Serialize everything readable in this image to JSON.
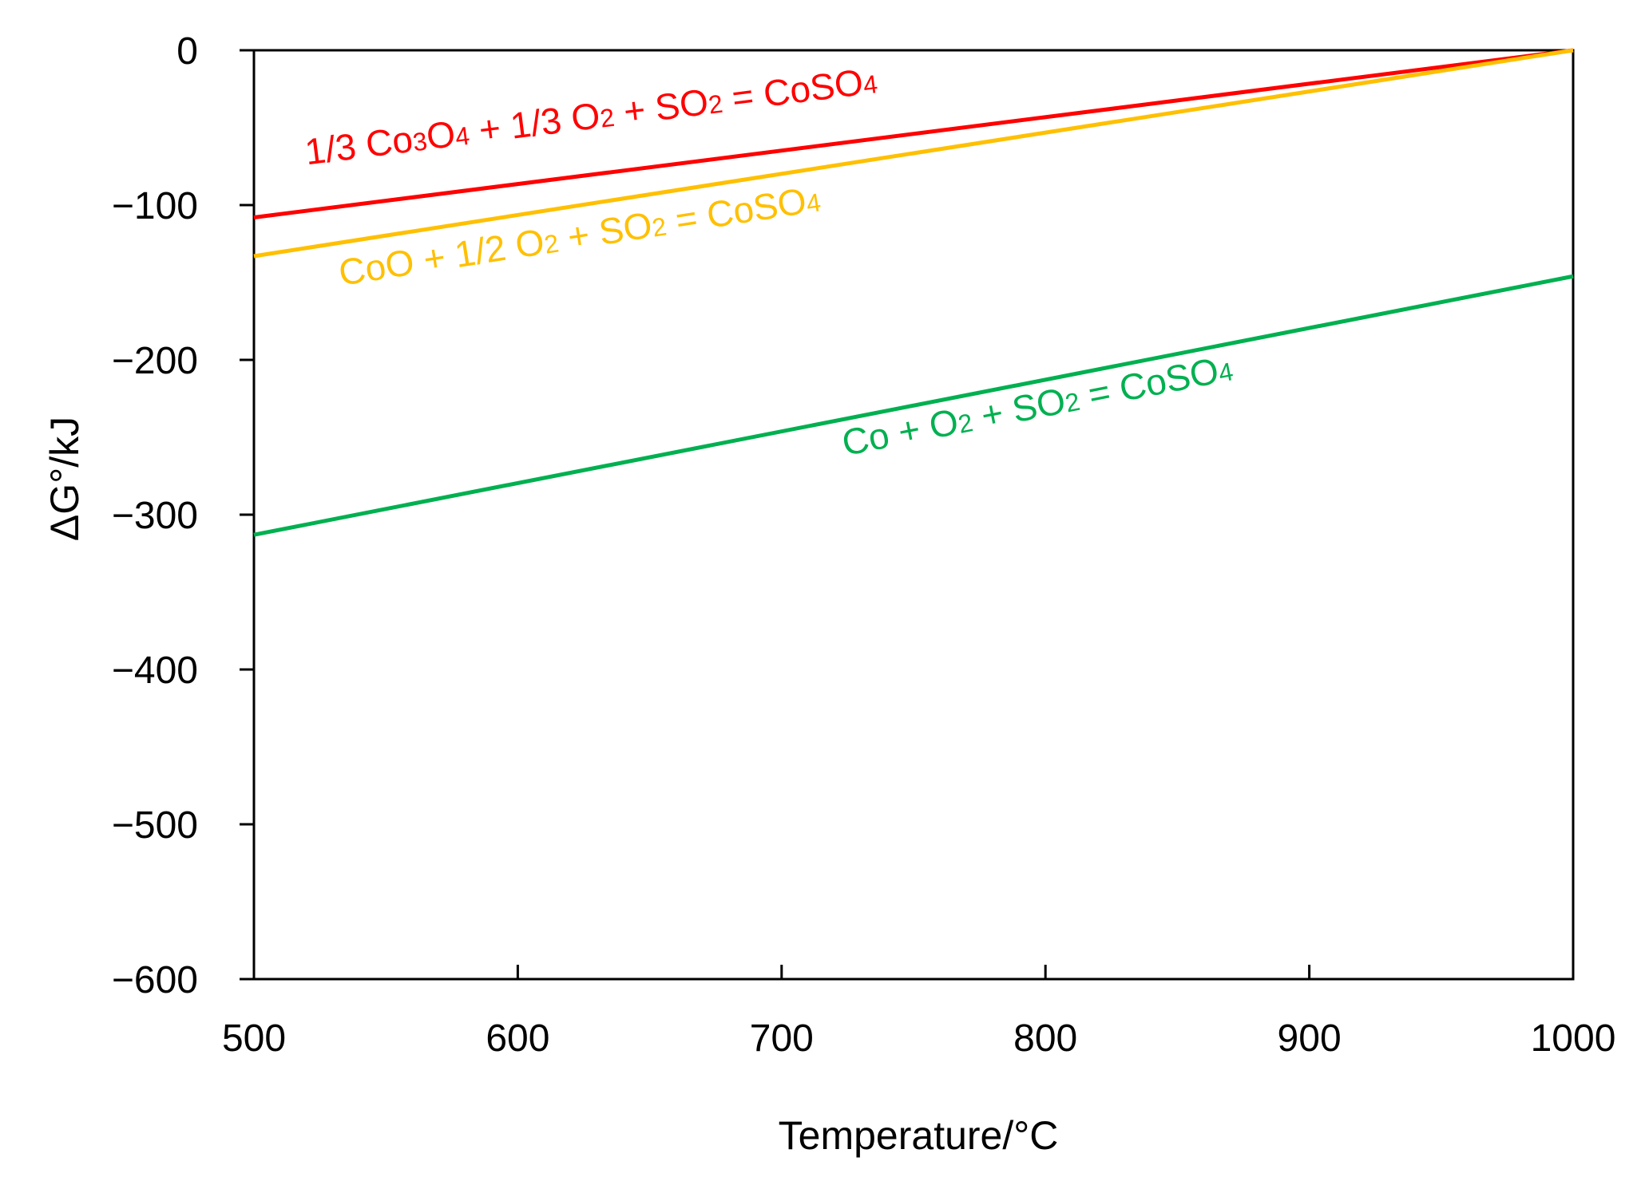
{
  "chart_data": {
    "type": "line",
    "title": "",
    "xlabel": "Temperature/°C",
    "ylabel": "ΔG°/kJ",
    "xlim": [
      500,
      1000
    ],
    "ylim": [
      -600,
      0
    ],
    "x_ticks": [
      500,
      600,
      700,
      800,
      900,
      1000
    ],
    "y_ticks": [
      0,
      -100,
      -200,
      -300,
      -400,
      -500,
      -600
    ],
    "x_tick_labels": [
      "500",
      "600",
      "700",
      "800",
      "900",
      "1000"
    ],
    "y_tick_labels": [
      "0",
      "−100",
      "−200",
      "−300",
      "−400",
      "−500",
      "−600"
    ],
    "grid": false,
    "series": [
      {
        "name": "1/3 Co3O4 + 1/3 O2 + SO2 = CoSO4",
        "color": "#ff0000",
        "x": [
          500,
          1000
        ],
        "y": [
          -108,
          0
        ],
        "label_parts": [
          {
            "t": "1/3 Co"
          },
          {
            "t": "3",
            "sub": true
          },
          {
            "t": "O"
          },
          {
            "t": "4",
            "sub": true
          },
          {
            "t": " + 1/3 O"
          },
          {
            "t": "2",
            "sub": true
          },
          {
            "t": " + SO"
          },
          {
            "t": "2",
            "sub": true
          },
          {
            "t": " = CoSO"
          },
          {
            "t": "4",
            "sub": true
          }
        ],
        "label_anchor": {
          "x": 520,
          "y": -74
        }
      },
      {
        "name": "CoO + 1/2 O2 + SO2 = CoSO4",
        "color": "#ffc000",
        "x": [
          500,
          1000
        ],
        "y": [
          -133,
          0
        ],
        "label_parts": [
          {
            "t": "CoO + 1/2 O"
          },
          {
            "t": "2",
            "sub": true
          },
          {
            "t": " + SO"
          },
          {
            "t": "2",
            "sub": true
          },
          {
            "t": " = CoSO"
          },
          {
            "t": "4",
            "sub": true
          }
        ],
        "label_anchor": {
          "x": 533,
          "y": -152
        }
      },
      {
        "name": "Co + O2 + SO2 = CoSO4",
        "color": "#00b050",
        "x": [
          500,
          1000
        ],
        "y": [
          -313,
          -146
        ],
        "label_parts": [
          {
            "t": "Co + O"
          },
          {
            "t": "2",
            "sub": true
          },
          {
            "t": " + SO"
          },
          {
            "t": "2",
            "sub": true
          },
          {
            "t": " = CoSO"
          },
          {
            "t": "4",
            "sub": true
          }
        ],
        "label_anchor": {
          "x": 724,
          "y": -262
        }
      }
    ]
  }
}
